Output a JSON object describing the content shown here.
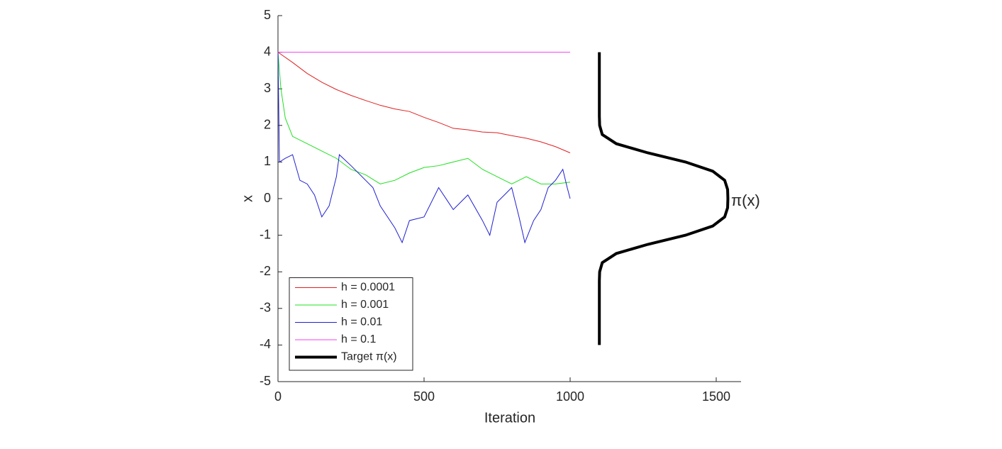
{
  "chart_data": {
    "type": "line",
    "x_label": "Iteration",
    "y_label": "x",
    "annotation": "π(x)",
    "xlim": [
      0,
      1585
    ],
    "xticks": [
      0,
      500,
      1000,
      1500
    ],
    "ylim": [
      -5,
      5
    ],
    "yticks": [
      -5,
      -4,
      -3,
      -2,
      -1,
      0,
      1,
      2,
      3,
      4,
      5
    ],
    "legend": "lower left",
    "series": [
      {
        "name": "h = 0.0001",
        "color": "#e02020",
        "line_width": 1,
        "x": [
          0,
          50,
          100,
          150,
          200,
          250,
          300,
          350,
          400,
          450,
          500,
          550,
          600,
          650,
          700,
          750,
          800,
          850,
          900,
          950,
          1000
        ],
        "values": [
          4,
          3.72,
          3.42,
          3.18,
          2.98,
          2.82,
          2.68,
          2.55,
          2.45,
          2.38,
          2.22,
          2.08,
          1.92,
          1.88,
          1.82,
          1.8,
          1.72,
          1.65,
          1.55,
          1.42,
          1.25
        ]
      },
      {
        "name": "h = 0.001",
        "color": "#20e020",
        "line_width": 1,
        "x": [
          0,
          10,
          25,
          50,
          100,
          150,
          200,
          250,
          300,
          350,
          400,
          450,
          500,
          550,
          600,
          650,
          700,
          750,
          800,
          850,
          900,
          950,
          1000
        ],
        "values": [
          4,
          3,
          2.2,
          1.7,
          1.5,
          1.3,
          1.1,
          0.8,
          0.65,
          0.4,
          0.5,
          0.7,
          0.85,
          0.9,
          1.0,
          1.1,
          0.8,
          0.6,
          0.4,
          0.6,
          0.4,
          0.4,
          0.45
        ]
      },
      {
        "name": "h = 0.01",
        "color": "#2020d0",
        "line_width": 1,
        "x": [
          0,
          5,
          25,
          50,
          75,
          100,
          125,
          150,
          175,
          200,
          210,
          250,
          300,
          325,
          350,
          400,
          425,
          450,
          500,
          550,
          600,
          650,
          700,
          725,
          750,
          775,
          800,
          825,
          845,
          875,
          900,
          925,
          950,
          975,
          990,
          1000
        ],
        "values": [
          4,
          1.0,
          1.1,
          1.2,
          0.5,
          0.4,
          0.1,
          -0.5,
          -0.2,
          0.6,
          1.2,
          0.9,
          0.5,
          0.3,
          -0.2,
          -0.8,
          -1.2,
          -0.6,
          -0.5,
          0.3,
          -0.3,
          0.1,
          -0.6,
          -1.0,
          -0.1,
          0.1,
          0.3,
          -0.5,
          -1.2,
          -0.6,
          -0.3,
          0.3,
          0.5,
          0.8,
          0.3,
          0.0
        ]
      },
      {
        "name": "h = 0.1",
        "color": "#f040f0",
        "line_width": 1,
        "x": [
          0,
          1000
        ],
        "values": [
          4,
          4
        ]
      },
      {
        "name": "Target π(x)",
        "color": "#000000",
        "line_width": 4,
        "x": [
          1100,
          1100,
          1100,
          1100,
          1100,
          1101,
          1110,
          1158,
          1266,
          1395,
          1488,
          1529,
          1539,
          1540,
          1539,
          1529,
          1488,
          1395,
          1266,
          1158,
          1110,
          1101,
          1100,
          1100,
          1100,
          1100,
          1100
        ],
        "values": [
          -4,
          -3.5,
          -3,
          -2.5,
          -2.25,
          -2,
          -1.75,
          -1.5,
          -1.25,
          -1,
          -0.75,
          -0.5,
          -0.25,
          0,
          0.25,
          0.5,
          0.75,
          1,
          1.25,
          1.5,
          1.75,
          2,
          2.25,
          2.5,
          3,
          3.5,
          4
        ]
      }
    ]
  }
}
